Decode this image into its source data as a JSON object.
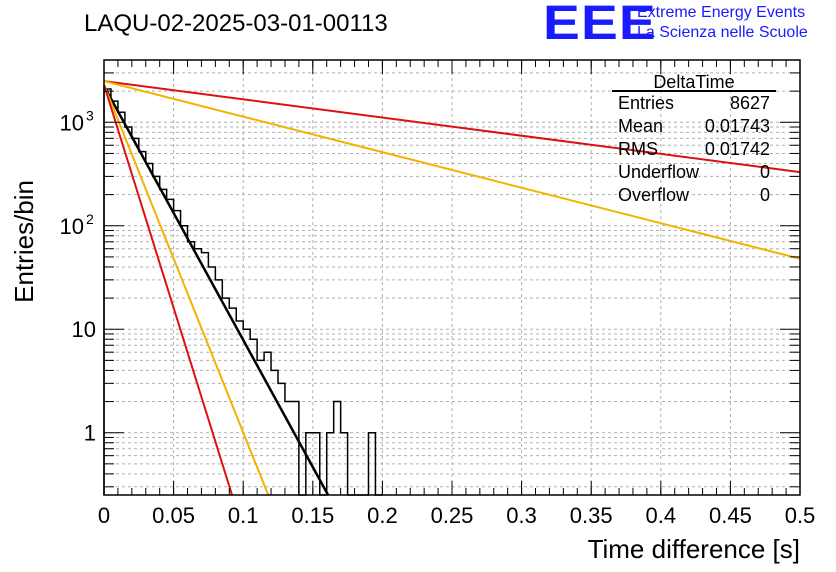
{
  "title": "LAQU-02-2025-03-01-00113",
  "logo": {
    "text": "EEE",
    "line1": "Extreme Energy Events",
    "line2": "La Scienza nelle Scuole",
    "color": "#1a1aff"
  },
  "stats_box": {
    "title": "DeltaTime",
    "rows": [
      {
        "label": "Entries",
        "value": "8627"
      },
      {
        "label": "Mean",
        "value": "0.01743"
      },
      {
        "label": "RMS",
        "value": "0.01742"
      },
      {
        "label": "Underflow",
        "value": "0"
      },
      {
        "label": "Overflow",
        "value": "0"
      }
    ]
  },
  "chart_data": {
    "type": "bar",
    "xlabel": "Time difference [s]",
    "ylabel": "Entries/bin",
    "xlim": [
      0,
      0.5
    ],
    "ylim": [
      0.25,
      4000
    ],
    "yscale": "log",
    "grid": true,
    "x_ticks": [
      "0",
      "0.05",
      "0.1",
      "0.15",
      "0.2",
      "0.25",
      "0.3",
      "0.35",
      "0.4",
      "0.45",
      "0.5"
    ],
    "y_ticks": [
      {
        "value": 1,
        "label": "1"
      },
      {
        "value": 10,
        "label": "10"
      },
      {
        "value": 100,
        "label": "10",
        "sup": "2"
      },
      {
        "value": 1000,
        "label": "10",
        "sup": "3"
      }
    ],
    "histogram": {
      "bin_width": 0.005,
      "x_start": 0,
      "values": [
        2100,
        1600,
        1250,
        900,
        700,
        520,
        400,
        300,
        225,
        180,
        140,
        100,
        70,
        60,
        55,
        40,
        30,
        20,
        16,
        12,
        10,
        8,
        5,
        6,
        4,
        3,
        2,
        2,
        0,
        1,
        1,
        0,
        1,
        2,
        1,
        0,
        0,
        0,
        1,
        0
      ],
      "color": "#000000"
    },
    "fits": [
      {
        "points": [
          [
            0,
            2250
          ],
          [
            0.161,
            0.25
          ]
        ],
        "color": "#000000"
      },
      {
        "points": [
          [
            0,
            2500
          ],
          [
            0.5,
            330
          ]
        ],
        "color": "#dd1111"
      },
      {
        "points": [
          [
            0,
            2500
          ],
          [
            0.5,
            48
          ]
        ],
        "color": "#f0b400"
      },
      {
        "points": [
          [
            0,
            2300
          ],
          [
            0.118,
            0.25
          ]
        ],
        "color": "#f0b400"
      },
      {
        "points": [
          [
            0,
            2300
          ],
          [
            0.092,
            0.25
          ]
        ],
        "color": "#dd1111"
      }
    ]
  }
}
